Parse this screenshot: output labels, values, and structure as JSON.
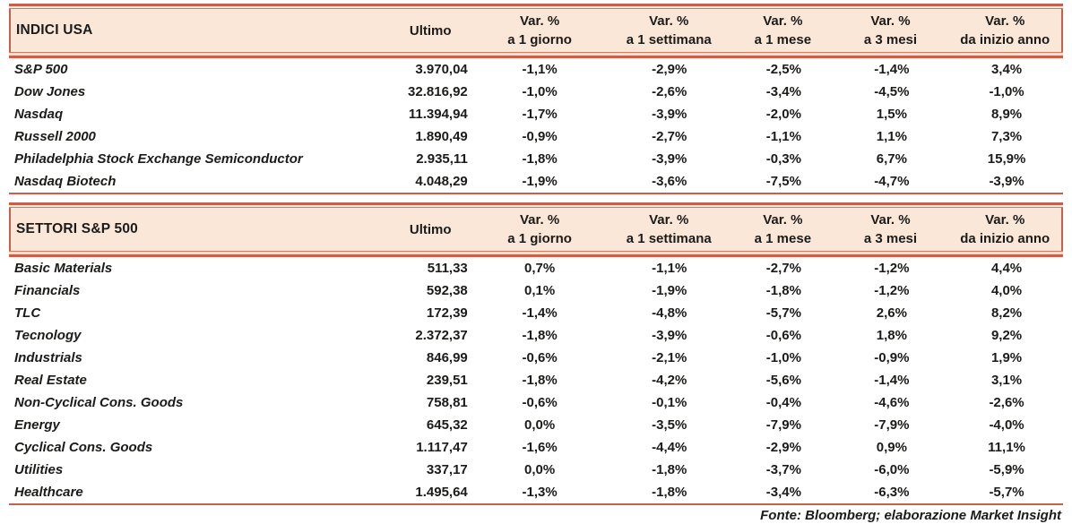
{
  "colors": {
    "accent_rule": "#c5604d",
    "accent_rule_light": "#cf7a61",
    "header_background": "#fbe7d8",
    "text": "#1b1b19"
  },
  "columns": {
    "ultimo": "Ultimo",
    "var_label": "Var. %",
    "periods": [
      "a 1 giorno",
      "a 1 settimana",
      "a 1 mese",
      "a 3 mesi",
      "da inizio anno"
    ]
  },
  "tables": [
    {
      "title": "INDICI USA",
      "rows": [
        {
          "name": "S&P 500",
          "ultimo": "3.970,04",
          "vars": [
            "-1,1%",
            "-2,9%",
            "-2,5%",
            "-1,4%",
            "3,4%"
          ]
        },
        {
          "name": "Dow Jones",
          "ultimo": "32.816,92",
          "vars": [
            "-1,0%",
            "-2,6%",
            "-3,4%",
            "-4,5%",
            "-1,0%"
          ]
        },
        {
          "name": "Nasdaq",
          "ultimo": "11.394,94",
          "vars": [
            "-1,7%",
            "-3,9%",
            "-2,0%",
            "1,5%",
            "8,9%"
          ]
        },
        {
          "name": "Russell 2000",
          "ultimo": "1.890,49",
          "vars": [
            "-0,9%",
            "-2,7%",
            "-1,1%",
            "1,1%",
            "7,3%"
          ]
        },
        {
          "name": "Philadelphia Stock Exchange Semiconductor",
          "ultimo": "2.935,11",
          "vars": [
            "-1,8%",
            "-3,9%",
            "-0,3%",
            "6,7%",
            "15,9%"
          ]
        },
        {
          "name": "Nasdaq Biotech",
          "ultimo": "4.048,29",
          "vars": [
            "-1,9%",
            "-3,6%",
            "-7,5%",
            "-4,7%",
            "-3,9%"
          ]
        }
      ]
    },
    {
      "title": "SETTORI S&P 500",
      "rows": [
        {
          "name": "Basic Materials",
          "ultimo": "511,33",
          "vars": [
            "0,7%",
            "-1,1%",
            "-2,7%",
            "-1,2%",
            "4,4%"
          ]
        },
        {
          "name": "Financials",
          "ultimo": "592,38",
          "vars": [
            "0,1%",
            "-1,9%",
            "-1,8%",
            "-1,2%",
            "4,0%"
          ]
        },
        {
          "name": "TLC",
          "ultimo": "172,39",
          "vars": [
            "-1,4%",
            "-4,8%",
            "-5,7%",
            "2,6%",
            "8,2%"
          ]
        },
        {
          "name": "Tecnology",
          "ultimo": "2.372,37",
          "vars": [
            "-1,8%",
            "-3,9%",
            "-0,6%",
            "1,8%",
            "9,2%"
          ]
        },
        {
          "name": "Industrials",
          "ultimo": "846,99",
          "vars": [
            "-0,6%",
            "-2,1%",
            "-1,0%",
            "-0,9%",
            "1,9%"
          ]
        },
        {
          "name": "Real Estate",
          "ultimo": "239,51",
          "vars": [
            "-1,8%",
            "-4,2%",
            "-5,6%",
            "-1,4%",
            "3,1%"
          ]
        },
        {
          "name": "Non-Cyclical Cons. Goods",
          "ultimo": "758,81",
          "vars": [
            "-0,6%",
            "-0,1%",
            "-0,4%",
            "-4,6%",
            "-2,6%"
          ]
        },
        {
          "name": "Energy",
          "ultimo": "645,32",
          "vars": [
            "0,0%",
            "-3,5%",
            "-7,9%",
            "-7,9%",
            "-4,0%"
          ]
        },
        {
          "name": "Cyclical Cons. Goods",
          "ultimo": "1.117,47",
          "vars": [
            "-1,6%",
            "-4,4%",
            "-2,9%",
            "0,9%",
            "11,1%"
          ]
        },
        {
          "name": "Utilities",
          "ultimo": "337,17",
          "vars": [
            "0,0%",
            "-1,8%",
            "-3,7%",
            "-6,0%",
            "-5,9%"
          ]
        },
        {
          "name": "Healthcare",
          "ultimo": "1.495,64",
          "vars": [
            "-1,3%",
            "-1,8%",
            "-3,4%",
            "-6,3%",
            "-5,7%"
          ]
        }
      ]
    }
  ],
  "footer": {
    "text": "Fonte: Bloomberg; elaborazione Market Insight"
  }
}
